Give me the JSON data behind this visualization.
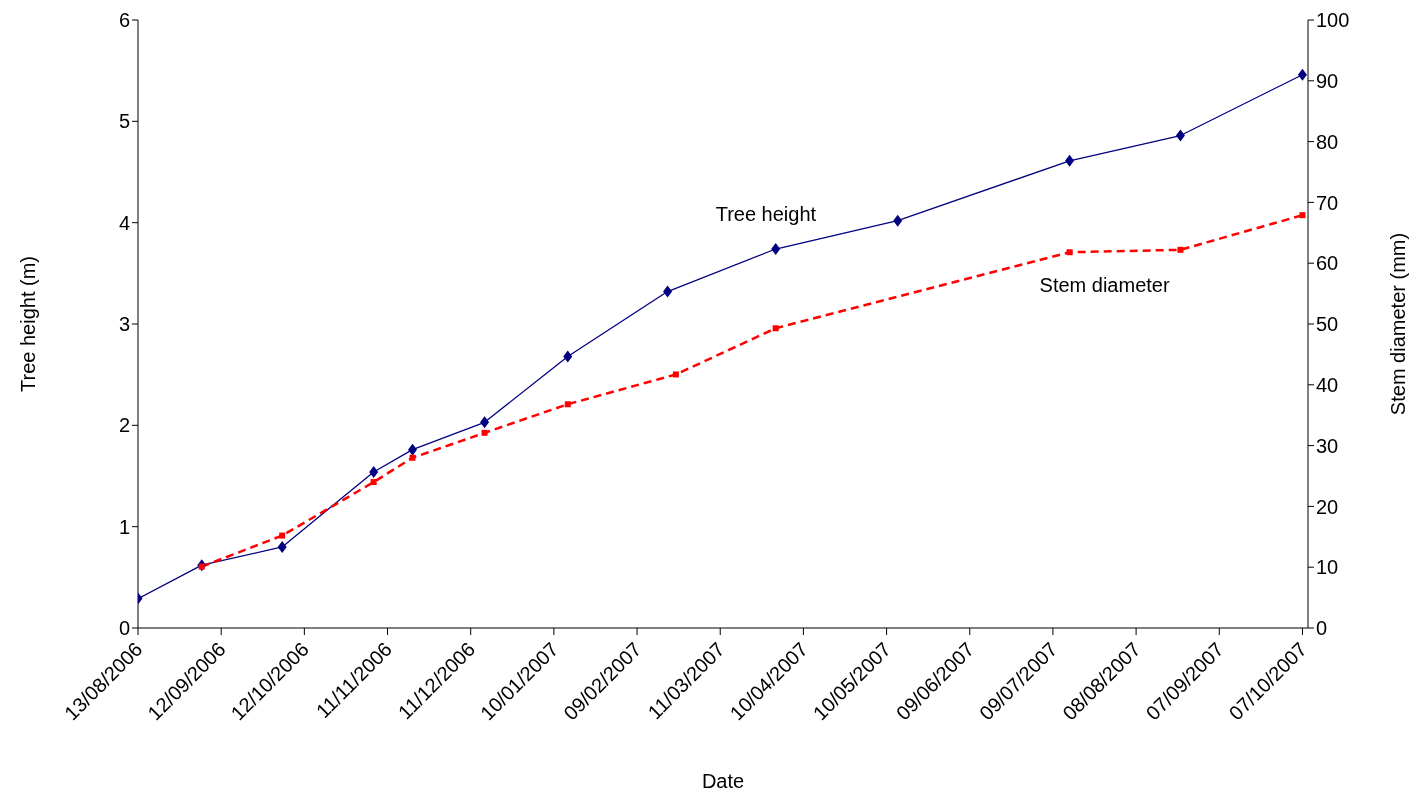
{
  "chart_data": {
    "type": "line",
    "xlabel": "Date",
    "ylabel": "Tree height (m)",
    "y2label": "Stem diameter (mm)",
    "xlim": [
      "2006-08-13",
      "2007-10-09"
    ],
    "xticks": [
      {
        "value": "2006-08-13",
        "label": "13/08/2006"
      },
      {
        "value": "2006-09-12",
        "label": "12/09/2006"
      },
      {
        "value": "2006-10-12",
        "label": "12/10/2006"
      },
      {
        "value": "2006-11-11",
        "label": "11/11/2006"
      },
      {
        "value": "2006-12-11",
        "label": "11/12/2006"
      },
      {
        "value": "2007-01-10",
        "label": "10/01/2007"
      },
      {
        "value": "2007-02-09",
        "label": "09/02/2007"
      },
      {
        "value": "2007-03-11",
        "label": "11/03/2007"
      },
      {
        "value": "2007-04-10",
        "label": "10/04/2007"
      },
      {
        "value": "2007-05-10",
        "label": "10/05/2007"
      },
      {
        "value": "2007-06-09",
        "label": "09/06/2007"
      },
      {
        "value": "2007-07-09",
        "label": "09/07/2007"
      },
      {
        "value": "2007-08-08",
        "label": "08/08/2007"
      },
      {
        "value": "2007-09-07",
        "label": "07/09/2007"
      },
      {
        "value": "2007-10-07",
        "label": "07/10/2007"
      }
    ],
    "ylim": [
      0,
      6
    ],
    "yticks": [
      0,
      1,
      2,
      3,
      4,
      5,
      6
    ],
    "y2lim": [
      0,
      100
    ],
    "y2ticks": [
      0,
      10,
      20,
      30,
      40,
      50,
      60,
      70,
      80,
      90,
      100
    ],
    "series": [
      {
        "name": "Tree height",
        "color": "#000080",
        "marker": "diamond",
        "line_style": "solid",
        "x": [
          "2006-08-13",
          "2006-09-05",
          "2006-10-04",
          "2006-11-06",
          "2006-11-20",
          "2006-12-16",
          "2007-01-15",
          "2007-02-20",
          "2007-03-31",
          "2007-05-14",
          "2007-07-15",
          "2007-08-24",
          "2007-10-07"
        ],
        "values": [
          0.29,
          0.62,
          0.8,
          1.54,
          1.76,
          2.03,
          2.68,
          3.32,
          3.74,
          4.02,
          4.61,
          4.86,
          5.46
        ]
      },
      {
        "name": "Stem diameter",
        "color": "#ff0000",
        "marker": "square",
        "line_style": "dashed",
        "axis": "y2",
        "x": [
          "2006-09-05",
          "2006-10-04",
          "2006-11-06",
          "2006-11-20",
          "2006-12-16",
          "2007-01-15",
          "2007-02-23",
          "2007-03-31",
          "2007-07-15",
          "2007-08-24",
          "2007-10-07"
        ],
        "values": [
          10.1,
          15.2,
          24.0,
          28.0,
          32.1,
          36.8,
          41.7,
          49.3,
          61.8,
          62.2,
          67.9
        ]
      }
    ]
  }
}
